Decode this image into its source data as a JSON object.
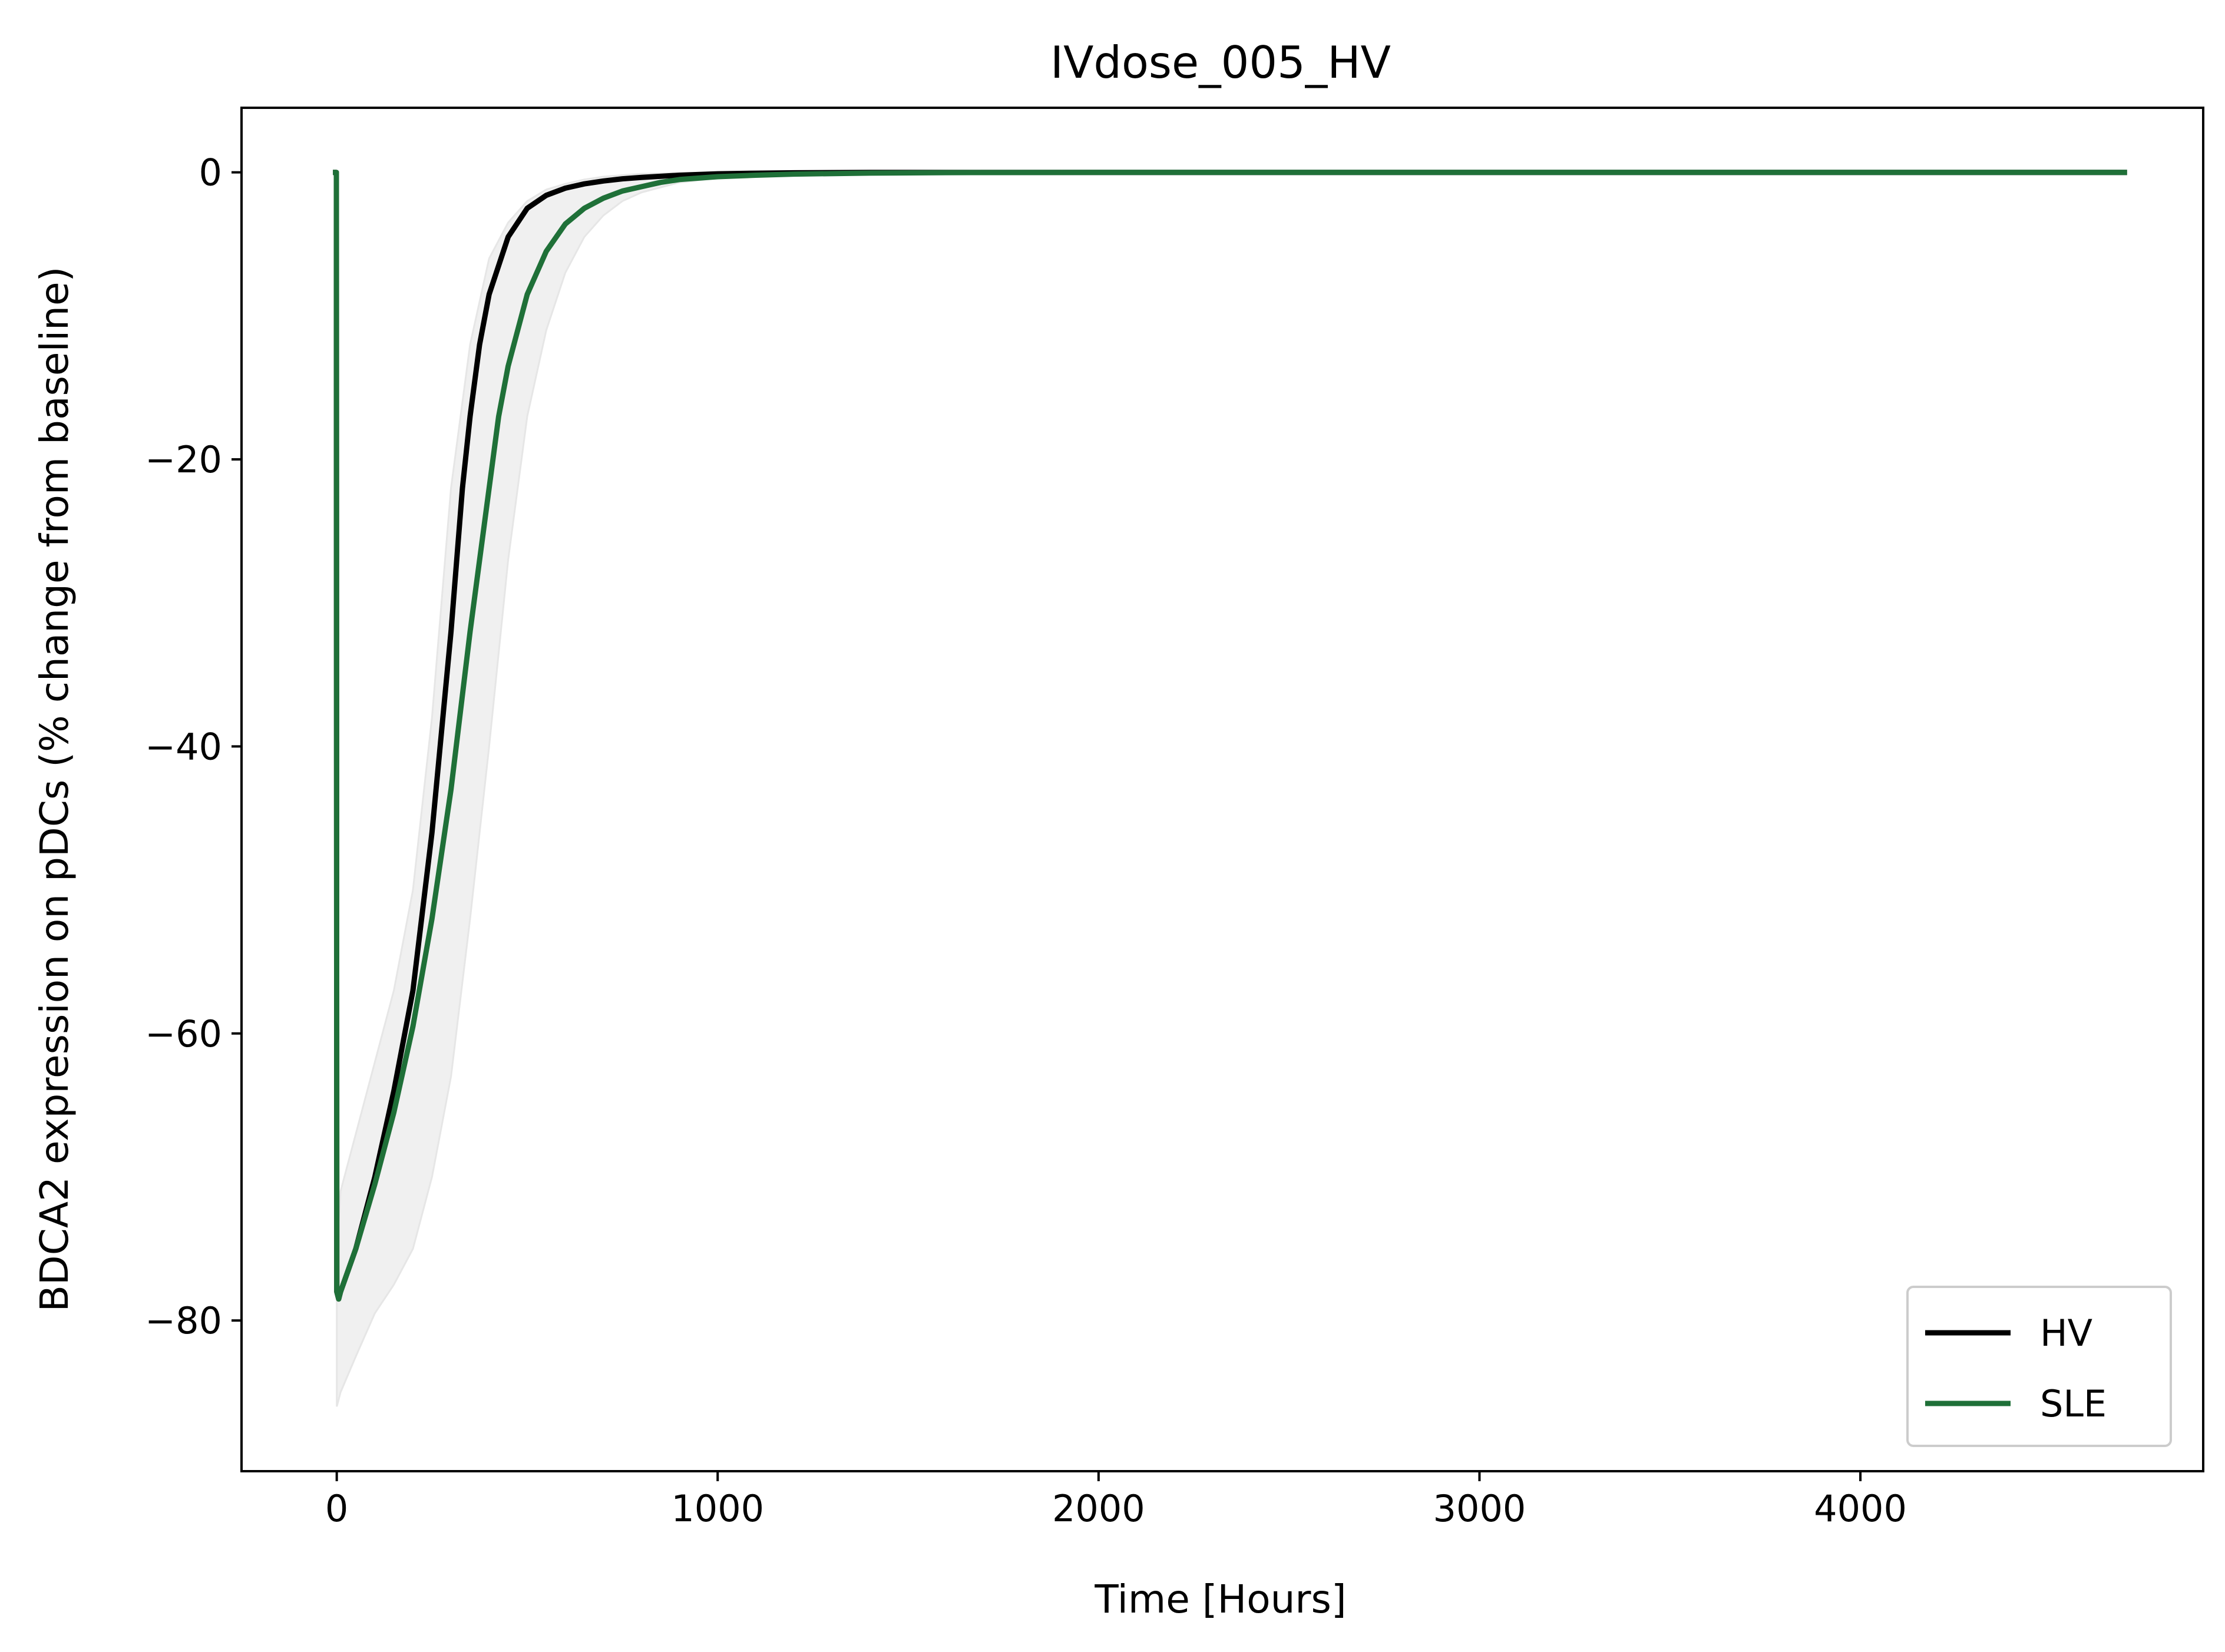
{
  "chart_data": {
    "type": "line",
    "title": "IVdose_005_HV",
    "xlabel": "Time [Hours]",
    "ylabel": "BDCA2 expression on pDCs (% change from baseline)",
    "xlim": [
      -250,
      4900
    ],
    "ylim": [
      -90.5,
      4.5
    ],
    "xticks": [
      0,
      1000,
      2000,
      3000,
      4000
    ],
    "xtick_labels": [
      "0",
      "1000",
      "2000",
      "3000",
      "4000"
    ],
    "yticks": [
      0,
      -20,
      -40,
      -60,
      -80
    ],
    "ytick_labels": [
      "0",
      "−20",
      "−40",
      "−60",
      "−80"
    ],
    "grid": false,
    "legend_position": "lower-right",
    "series": [
      {
        "name": "HV",
        "color": "#000000",
        "x": [
          -10,
          -1,
          0,
          5,
          10,
          50,
          100,
          150,
          200,
          250,
          300,
          330,
          350,
          375,
          400,
          450,
          500,
          550,
          600,
          650,
          700,
          750,
          800,
          900,
          1000,
          1100,
          1200,
          1400,
          1600,
          2000,
          3000,
          4000,
          4700
        ],
        "y": [
          0,
          0,
          -78,
          -78.5,
          -78,
          -75,
          -70,
          -64,
          -57,
          -46,
          -32,
          -22,
          -17,
          -12,
          -8.5,
          -4.5,
          -2.5,
          -1.6,
          -1.1,
          -0.8,
          -0.6,
          -0.45,
          -0.35,
          -0.2,
          -0.1,
          -0.06,
          -0.03,
          0,
          0,
          0,
          0,
          0,
          0
        ]
      },
      {
        "name": "SLE",
        "color": "#1f7038",
        "x": [
          -10,
          -1,
          0,
          5,
          10,
          50,
          100,
          150,
          200,
          250,
          300,
          350,
          400,
          425,
          450,
          500,
          550,
          600,
          650,
          700,
          750,
          800,
          850,
          900,
          1000,
          1100,
          1200,
          1400,
          1600,
          2000,
          3000,
          4000,
          4700
        ],
        "y": [
          0,
          0,
          -78,
          -78.5,
          -78,
          -75,
          -70.5,
          -65.5,
          -59.5,
          -52,
          -43,
          -32,
          -22,
          -17,
          -13.5,
          -8.5,
          -5.5,
          -3.6,
          -2.5,
          -1.8,
          -1.3,
          -1,
          -0.7,
          -0.5,
          -0.3,
          -0.2,
          -0.12,
          -0.05,
          -0.02,
          0,
          0,
          0,
          0
        ]
      }
    ],
    "band": {
      "color": "#f0f0f0",
      "x": [
        0,
        5,
        10,
        50,
        100,
        150,
        200,
        250,
        300,
        350,
        400,
        450,
        500,
        550,
        600,
        650,
        700,
        750,
        800,
        900,
        1000,
        1100,
        1200,
        1400,
        1600,
        2000,
        4700
      ],
      "upper": [
        -73,
        -73,
        -71,
        -67,
        -62,
        -57,
        -50,
        -38,
        -22,
        -12,
        -6,
        -3.5,
        -2,
        -1.2,
        -0.8,
        -0.5,
        -0.3,
        -0.2,
        -0.1,
        -0.05,
        0,
        0,
        0,
        0,
        0,
        0,
        0
      ],
      "lower": [
        -86,
        -85.5,
        -85,
        -82.5,
        -79.5,
        -77.5,
        -75,
        -70,
        -63,
        -52,
        -40,
        -27,
        -17,
        -11,
        -7,
        -4.5,
        -3,
        -2,
        -1.4,
        -0.7,
        -0.4,
        -0.25,
        -0.15,
        -0.06,
        -0.03,
        0,
        0
      ]
    }
  }
}
